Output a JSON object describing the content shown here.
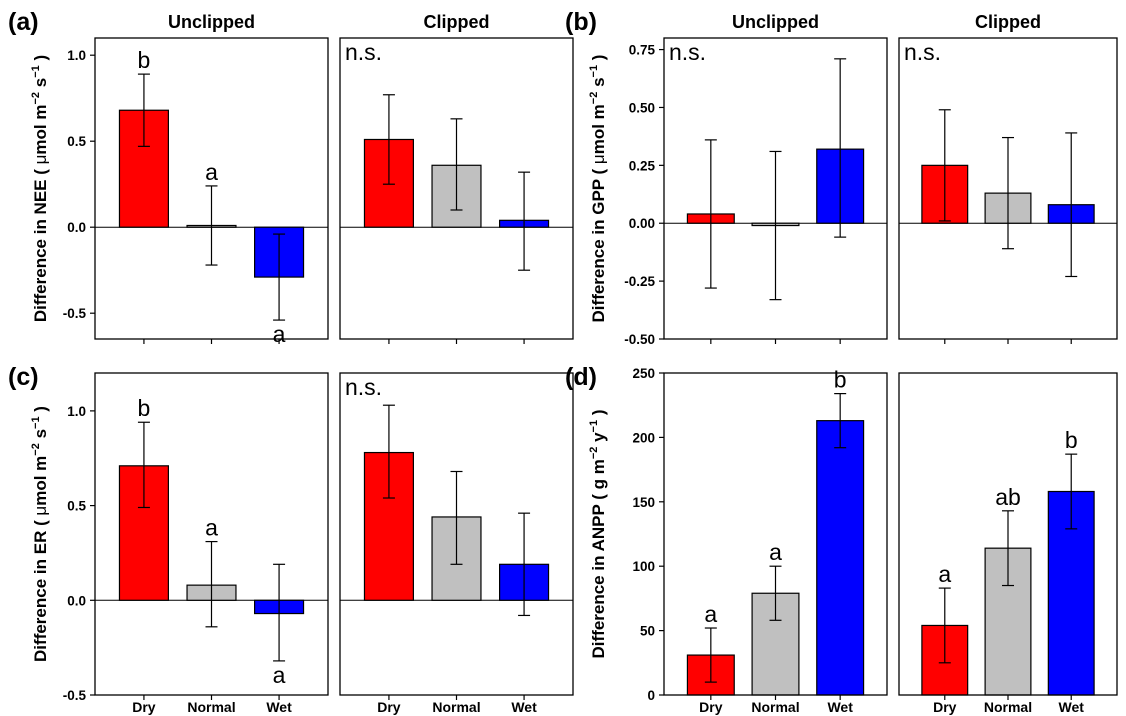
{
  "chart_data": [
    {
      "id": "a",
      "type": "bar",
      "panel_label": "(a)",
      "ylabel": "Difference in NEE ( μmol m⁻² s⁻¹ )",
      "ylabel_parts": [
        "Difference in NEE ( ",
        "μ",
        "mol m",
        "−2",
        " s",
        "−1",
        " )"
      ],
      "ylim": [
        -0.65,
        1.1
      ],
      "yticks": [
        -0.5,
        0.0,
        0.5,
        1.0
      ],
      "ytick_labels": [
        "-0.5",
        "0.0",
        "0.5",
        "1.0"
      ],
      "categories": [
        "Dry",
        "Normal",
        "Wet"
      ],
      "colors": [
        "#ff0000",
        "#c0c0c0",
        "#0000ff"
      ],
      "subplots": [
        {
          "title": "Unclipped",
          "values": [
            0.68,
            0.01,
            -0.29
          ],
          "err_low": [
            0.47,
            -0.22,
            -0.54
          ],
          "err_high": [
            0.89,
            0.24,
            -0.04
          ],
          "letters": [
            "b",
            "a",
            "a"
          ],
          "letter_pos": [
            "above",
            "above",
            "below"
          ],
          "note": ""
        },
        {
          "title": "Clipped",
          "values": [
            0.51,
            0.36,
            0.04
          ],
          "err_low": [
            0.25,
            0.1,
            -0.25
          ],
          "err_high": [
            0.77,
            0.63,
            0.32
          ],
          "letters": [
            "",
            "",
            ""
          ],
          "letter_pos": [
            "above",
            "above",
            "above"
          ],
          "note": "n.s."
        }
      ]
    },
    {
      "id": "b",
      "type": "bar",
      "panel_label": "(b)",
      "ylabel": "Difference in GPP ( μmol m⁻² s⁻¹ )",
      "ylabel_parts": [
        "Difference in GPP ( ",
        "μ",
        "mol m",
        "−2",
        " s",
        "−1",
        " )"
      ],
      "ylim": [
        -0.5,
        0.8
      ],
      "yticks": [
        -0.5,
        -0.25,
        0.0,
        0.25,
        0.5,
        0.75
      ],
      "ytick_labels": [
        "-0.50",
        "-0.25",
        "0.00",
        "0.25",
        "0.50",
        "0.75"
      ],
      "categories": [
        "Dry",
        "Normal",
        "Wet"
      ],
      "colors": [
        "#ff0000",
        "#c0c0c0",
        "#0000ff"
      ],
      "subplots": [
        {
          "title": "Unclipped",
          "values": [
            0.04,
            -0.01,
            0.32
          ],
          "err_low": [
            -0.28,
            -0.33,
            -0.06
          ],
          "err_high": [
            0.36,
            0.31,
            0.71
          ],
          "letters": [
            "",
            "",
            ""
          ],
          "letter_pos": [
            "above",
            "above",
            "above"
          ],
          "note": "n.s."
        },
        {
          "title": "Clipped",
          "values": [
            0.25,
            0.13,
            0.08
          ],
          "err_low": [
            0.01,
            -0.11,
            -0.23
          ],
          "err_high": [
            0.49,
            0.37,
            0.39
          ],
          "letters": [
            "",
            "",
            ""
          ],
          "letter_pos": [
            "above",
            "above",
            "above"
          ],
          "note": "n.s."
        }
      ]
    },
    {
      "id": "c",
      "type": "bar",
      "panel_label": "(c)",
      "ylabel": "Difference in ER ( μmol m⁻² s⁻¹ )",
      "ylabel_parts": [
        "Difference in ER ( ",
        "μ",
        "mol m",
        "−2",
        " s",
        "−1",
        " )"
      ],
      "ylim": [
        -0.5,
        1.2
      ],
      "yticks": [
        -0.5,
        0.0,
        0.5,
        1.0
      ],
      "ytick_labels": [
        "-0.5",
        "0.0",
        "0.5",
        "1.0"
      ],
      "categories": [
        "Dry",
        "Normal",
        "Wet"
      ],
      "colors": [
        "#ff0000",
        "#c0c0c0",
        "#0000ff"
      ],
      "subplots": [
        {
          "title": "",
          "values": [
            0.71,
            0.08,
            -0.07
          ],
          "err_low": [
            0.49,
            -0.14,
            -0.32
          ],
          "err_high": [
            0.94,
            0.31,
            0.19
          ],
          "letters": [
            "b",
            "a",
            "a"
          ],
          "letter_pos": [
            "above",
            "above",
            "below"
          ],
          "note": ""
        },
        {
          "title": "",
          "values": [
            0.78,
            0.44,
            0.19
          ],
          "err_low": [
            0.54,
            0.19,
            -0.08
          ],
          "err_high": [
            1.03,
            0.68,
            0.46
          ],
          "letters": [
            "",
            "",
            ""
          ],
          "letter_pos": [
            "above",
            "above",
            "above"
          ],
          "note": "n.s."
        }
      ]
    },
    {
      "id": "d",
      "type": "bar",
      "panel_label": "(d)",
      "ylabel": "Difference in ANPP ( g m⁻² y⁻¹ )",
      "ylabel_parts": [
        "Difference in ANPP ( g m",
        "−2",
        " y",
        "−1",
        " )"
      ],
      "ylim": [
        0,
        250
      ],
      "yticks": [
        0,
        50,
        100,
        150,
        200,
        250
      ],
      "ytick_labels": [
        "0",
        "50",
        "100",
        "150",
        "200",
        "250"
      ],
      "categories": [
        "Dry",
        "Normal",
        "Wet"
      ],
      "colors": [
        "#ff0000",
        "#c0c0c0",
        "#0000ff"
      ],
      "subplots": [
        {
          "title": "",
          "values": [
            31,
            79,
            213
          ],
          "err_low": [
            10,
            58,
            192
          ],
          "err_high": [
            52,
            100,
            234
          ],
          "letters": [
            "a",
            "a",
            "b"
          ],
          "letter_pos": [
            "above",
            "above",
            "above"
          ],
          "note": ""
        },
        {
          "title": "",
          "values": [
            54,
            114,
            158
          ],
          "err_low": [
            25,
            85,
            129
          ],
          "err_high": [
            83,
            143,
            187
          ],
          "letters": [
            "a",
            "ab",
            "b"
          ],
          "letter_pos": [
            "above",
            "above",
            "above"
          ],
          "note": ""
        }
      ]
    }
  ]
}
